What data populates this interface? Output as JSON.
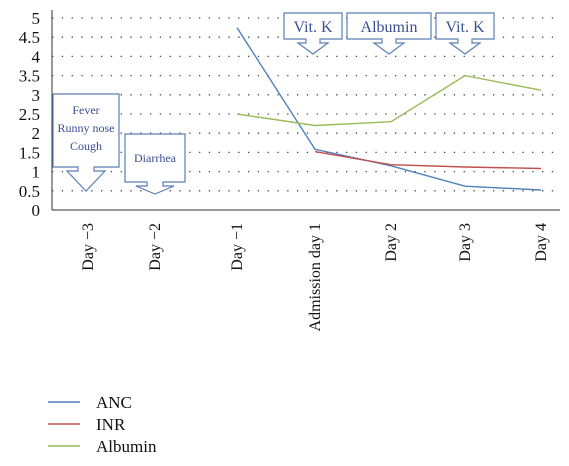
{
  "chart_data": {
    "type": "line",
    "categories": [
      "Day −3",
      "Day −2",
      "Day −1",
      "Admission day 1",
      "Day 2",
      "Day 3",
      "Day 4"
    ],
    "ylim": [
      0,
      5
    ],
    "yticks": [
      "0",
      "0.5",
      "1",
      "1.5",
      "2",
      "2.5",
      "3",
      "3.5",
      "4",
      "4.5",
      "5"
    ],
    "grid": "dotted",
    "series": [
      {
        "name": "ANC",
        "color": "#4f81bd",
        "values": [
          null,
          null,
          4.75,
          1.58,
          1.15,
          0.62,
          0.52
        ]
      },
      {
        "name": "INR",
        "color": "#c0504d",
        "values": [
          null,
          null,
          null,
          1.52,
          1.18,
          1.12,
          1.08
        ]
      },
      {
        "name": "Albumin",
        "color": "#9bbb59",
        "values": [
          null,
          null,
          2.5,
          2.2,
          2.3,
          3.5,
          3.12
        ]
      }
    ],
    "annotations": [
      {
        "category": "Day −3",
        "lines": [
          "Fever",
          "Runny nose",
          "Cough"
        ]
      },
      {
        "category": "Day −2",
        "lines": [
          "Diarrhea"
        ]
      },
      {
        "category": "Admission day 1",
        "lines": [
          "Vit. K"
        ]
      },
      {
        "category": "Day 2",
        "lines": [
          "Albumin"
        ]
      },
      {
        "category": "Day 3",
        "lines": [
          "Vit. K"
        ]
      }
    ],
    "legend_position": "bottom-left"
  }
}
